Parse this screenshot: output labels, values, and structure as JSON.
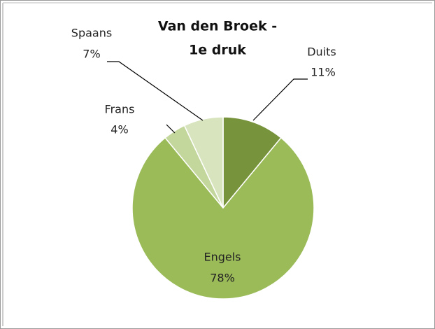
{
  "chart_data": {
    "type": "pie",
    "title": [
      "Van den Broek -",
      "1e druk"
    ],
    "categories": [
      "Duits",
      "Engels",
      "Frans",
      "Spaans"
    ],
    "values": [
      11,
      78,
      4,
      7
    ],
    "value_labels": [
      "11%",
      "78%",
      "4%",
      "7%"
    ],
    "colors": [
      "#77933c",
      "#9bbb59",
      "#c3d69b",
      "#d7e4bd"
    ]
  }
}
